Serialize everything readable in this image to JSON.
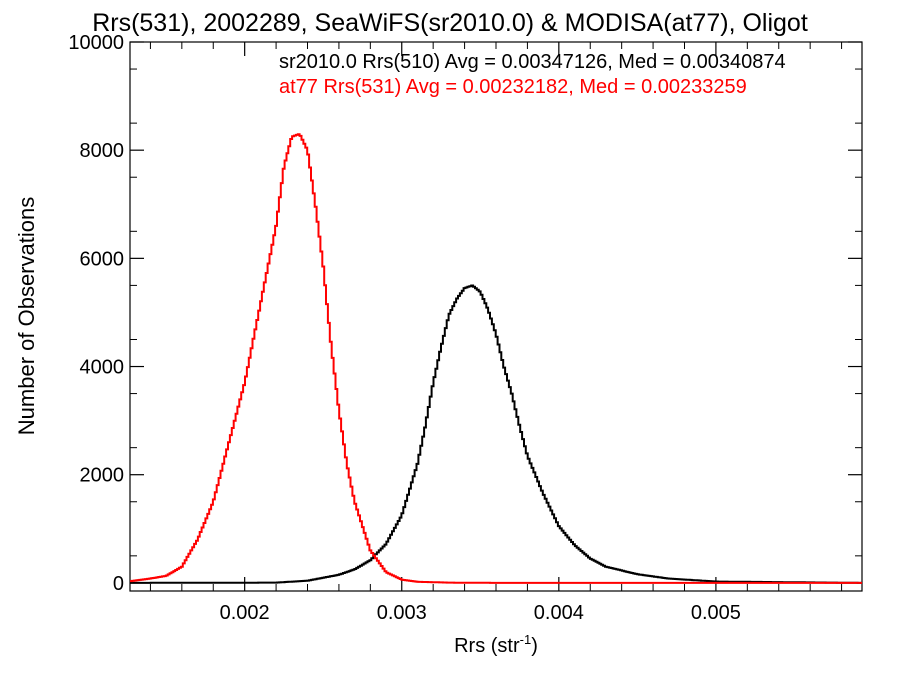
{
  "chart_data": {
    "type": "line",
    "title": "Rrs(531), 2002289, SeaWiFS(sr2010.0) & MODISA(at77), Oligot",
    "xlabel": "Rrs (str",
    "xlabel_sup": "-1",
    "xlabel_end": ")",
    "ylabel": "Number of Observations",
    "xlim": [
      0.00127,
      0.00593
    ],
    "ylim": [
      -150,
      10000
    ],
    "x_ticks": [
      0.002,
      0.003,
      0.004,
      0.005
    ],
    "x_tick_labels": [
      "0.002",
      "0.003",
      "0.004",
      "0.005"
    ],
    "y_ticks": [
      0,
      2000,
      4000,
      6000,
      8000,
      10000
    ],
    "y_tick_labels": [
      "0",
      "2000",
      "4000",
      "6000",
      "8000",
      "10000"
    ],
    "grid": false,
    "step": true,
    "annotations": [
      {
        "text": "sr2010.0 Rrs(510) Avg = 0.00347126, Med = 0.00340874",
        "color": "#000000"
      },
      {
        "text": "at77 Rrs(531) Avg = 0.00232182, Med = 0.00233259",
        "color": "#ff0000"
      }
    ],
    "series": [
      {
        "color": "#000000",
        "x": [
          0.00127,
          0.0022,
          0.0024,
          0.0026,
          0.0027,
          0.0028,
          0.0029,
          0.003,
          0.0031,
          0.00315,
          0.0032,
          0.00325,
          0.0033,
          0.00335,
          0.0034,
          0.00345,
          0.0035,
          0.00355,
          0.0036,
          0.00365,
          0.0037,
          0.00375,
          0.0038,
          0.0039,
          0.004,
          0.0041,
          0.0042,
          0.0043,
          0.0045,
          0.0047,
          0.005,
          0.00593
        ],
        "y": [
          0,
          5,
          40,
          150,
          250,
          420,
          720,
          1250,
          2200,
          2900,
          3700,
          4350,
          4950,
          5250,
          5450,
          5500,
          5380,
          5050,
          4600,
          4000,
          3500,
          2900,
          2350,
          1650,
          1050,
          700,
          450,
          300,
          160,
          80,
          25,
          0
        ]
      },
      {
        "color": "#ff0000",
        "x": [
          0.00127,
          0.0014,
          0.0015,
          0.0016,
          0.0017,
          0.0018,
          0.0019,
          0.002,
          0.0021,
          0.0022,
          0.00225,
          0.0023,
          0.00235,
          0.0024,
          0.00245,
          0.0025,
          0.00255,
          0.0026,
          0.00265,
          0.0027,
          0.0028,
          0.0029,
          0.003,
          0.0031,
          0.0033,
          0.0036,
          0.004,
          0.00593
        ],
        "y": [
          30,
          80,
          130,
          300,
          800,
          1500,
          2600,
          3700,
          5150,
          6600,
          7700,
          8250,
          8300,
          8000,
          7000,
          5850,
          4400,
          3200,
          2200,
          1500,
          600,
          200,
          60,
          20,
          5,
          0,
          0,
          0
        ]
      }
    ]
  }
}
